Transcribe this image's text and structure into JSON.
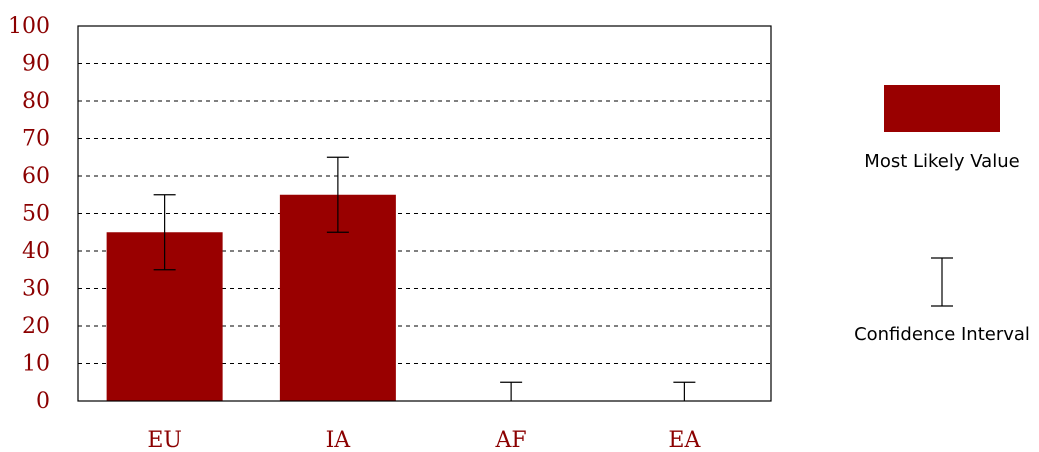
{
  "chart_data": {
    "type": "bar",
    "categories": [
      "EU",
      "IA",
      "AF",
      "EA"
    ],
    "series": [
      {
        "name": "Most Likely Value",
        "values": [
          45,
          55,
          0,
          0
        ]
      }
    ],
    "error_bars": {
      "name": "Confidence Interval",
      "low": [
        35,
        45,
        0,
        0
      ],
      "high": [
        55,
        65,
        5,
        5
      ]
    },
    "ylim": [
      0,
      100
    ],
    "yticks": [
      0,
      10,
      20,
      30,
      40,
      50,
      60,
      70,
      80,
      90,
      100
    ],
    "grid": "horizontal dashed",
    "legend_placement": "right",
    "colors": {
      "bar": "#990000",
      "tick_label": "#8b0000",
      "axis": "#000000"
    }
  }
}
